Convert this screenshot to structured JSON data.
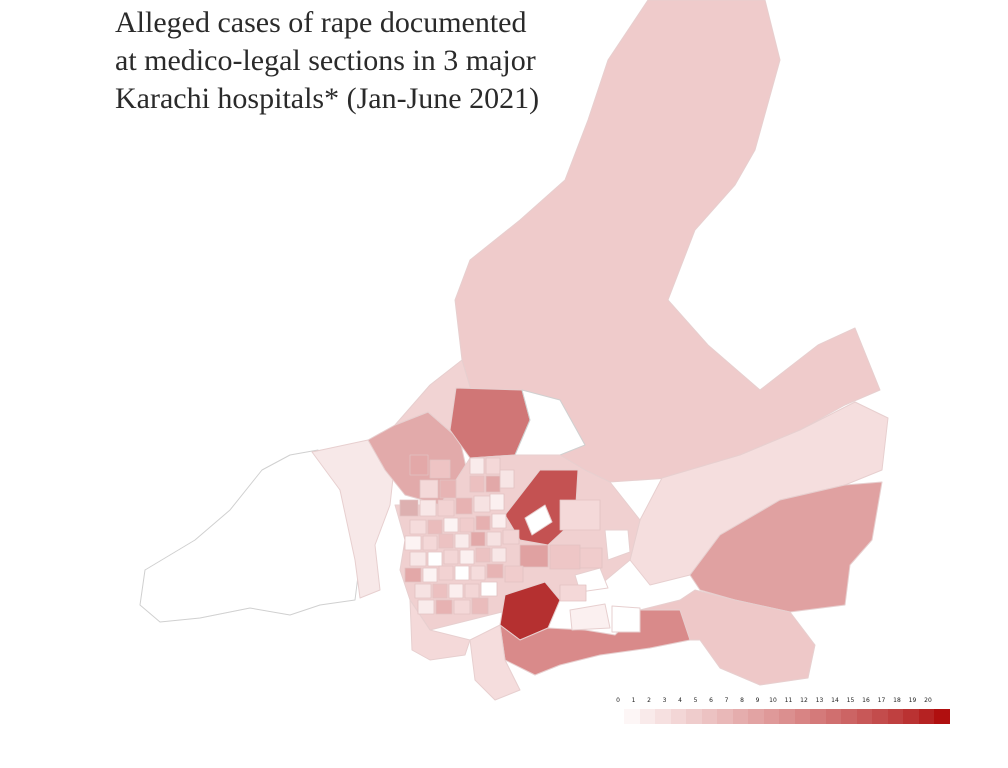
{
  "title_lines": [
    "Alleged cases of rape documented",
    "at medico-legal sections in 3 major",
    "Karachi hospitals* (Jan-June 2021)"
  ],
  "legend": {
    "values": [
      "0",
      "1",
      "2",
      "3",
      "4",
      "5",
      "6",
      "7",
      "8",
      "9",
      "10",
      "11",
      "12",
      "13",
      "14",
      "15",
      "16",
      "17",
      "18",
      "19",
      "20"
    ],
    "colors": [
      "#fdf6f6",
      "#f9eaea",
      "#f6e0e0",
      "#f3d6d6",
      "#efcccc",
      "#ecc2c2",
      "#e9b8b8",
      "#e5adad",
      "#e2a3a3",
      "#df9999",
      "#db8f8f",
      "#d88484",
      "#d47a7a",
      "#d06f6f",
      "#cc6464",
      "#c85858",
      "#c34c4c",
      "#bf4040",
      "#ba3232",
      "#b52222",
      "#b00f0f"
    ]
  },
  "palette": {
    "outline": "#ffffff",
    "district_border": "#d9b9b9"
  }
}
